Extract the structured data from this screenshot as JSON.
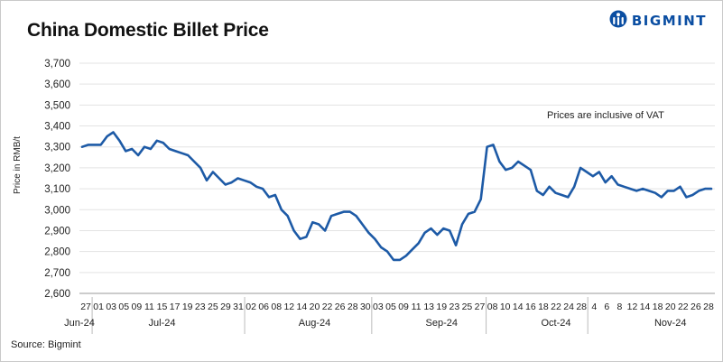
{
  "title": "China Domestic Billet Price",
  "brand": {
    "name": "BIGMINT",
    "color": "#0b4ea2"
  },
  "source": "Source: Bigmint",
  "chart_data": {
    "type": "line",
    "title": "China Domestic Billet Price",
    "ylabel": "Price in RMB/t",
    "xlabel": "",
    "ylim": [
      2600,
      3700
    ],
    "yticks": [
      "2,600",
      "2,700",
      "2,800",
      "2,900",
      "3,000",
      "3,100",
      "3,200",
      "3,300",
      "3,400",
      "3,500",
      "3,600",
      "3,700"
    ],
    "annotation": "Prices are inclusive of VAT",
    "grid": true,
    "legend": "none",
    "line_color": "#1d5aa6",
    "day_labels": [
      "27",
      "01",
      "03",
      "05",
      "09",
      "11",
      "15",
      "17",
      "19",
      "23",
      "25",
      "29",
      "31",
      "02",
      "06",
      "08",
      "12",
      "14",
      "20",
      "22",
      "26",
      "28",
      "30",
      "03",
      "05",
      "09",
      "11",
      "13",
      "19",
      "23",
      "25",
      "27",
      "08",
      "10",
      "14",
      "16",
      "18",
      "22",
      "24",
      "28",
      "4",
      "6",
      "8",
      "12",
      "14",
      "18",
      "20",
      "22",
      "26",
      "28"
    ],
    "month_labels": [
      {
        "label": "Jun-24",
        "index": 0
      },
      {
        "label": "Jul-24",
        "index": 6
      },
      {
        "label": "Aug-24",
        "index": 18
      },
      {
        "label": "Sep-24",
        "index": 28
      },
      {
        "label": "Oct-24",
        "index": 37
      },
      {
        "label": "Nov-24",
        "index": 46
      }
    ],
    "month_separators": [
      1,
      13,
      23,
      32,
      40
    ],
    "series": [
      {
        "values": [
          3300,
          3310,
          3310,
          3310,
          3350,
          3370,
          3330,
          3280,
          3290,
          3260,
          3300,
          3290,
          3330,
          3320,
          3290,
          3280,
          3270,
          3260,
          3230,
          3200,
          3140,
          3180,
          3150,
          3120,
          3130,
          3150,
          3140,
          3130,
          3110,
          3100,
          3060,
          3070,
          3000,
          2970,
          2900,
          2860,
          2870,
          2940,
          2930,
          2900,
          2970,
          2980,
          2990,
          2990,
          2970,
          2930,
          2890,
          2860,
          2820,
          2800,
          2760,
          2760,
          2780,
          2810,
          2840,
          2890,
          2910,
          2880,
          2910,
          2900,
          2830,
          2930,
          2980,
          2990,
          3050,
          3300,
          3310,
          3230,
          3190,
          3200,
          3230,
          3210,
          3190,
          3090,
          3070,
          3110,
          3080,
          3070,
          3060,
          3110,
          3200,
          3180,
          3160,
          3180,
          3130,
          3160,
          3120,
          3110,
          3100,
          3090,
          3100,
          3090,
          3080,
          3060,
          3090,
          3090,
          3110,
          3060,
          3070,
          3090,
          3100,
          3100
        ]
      }
    ]
  }
}
